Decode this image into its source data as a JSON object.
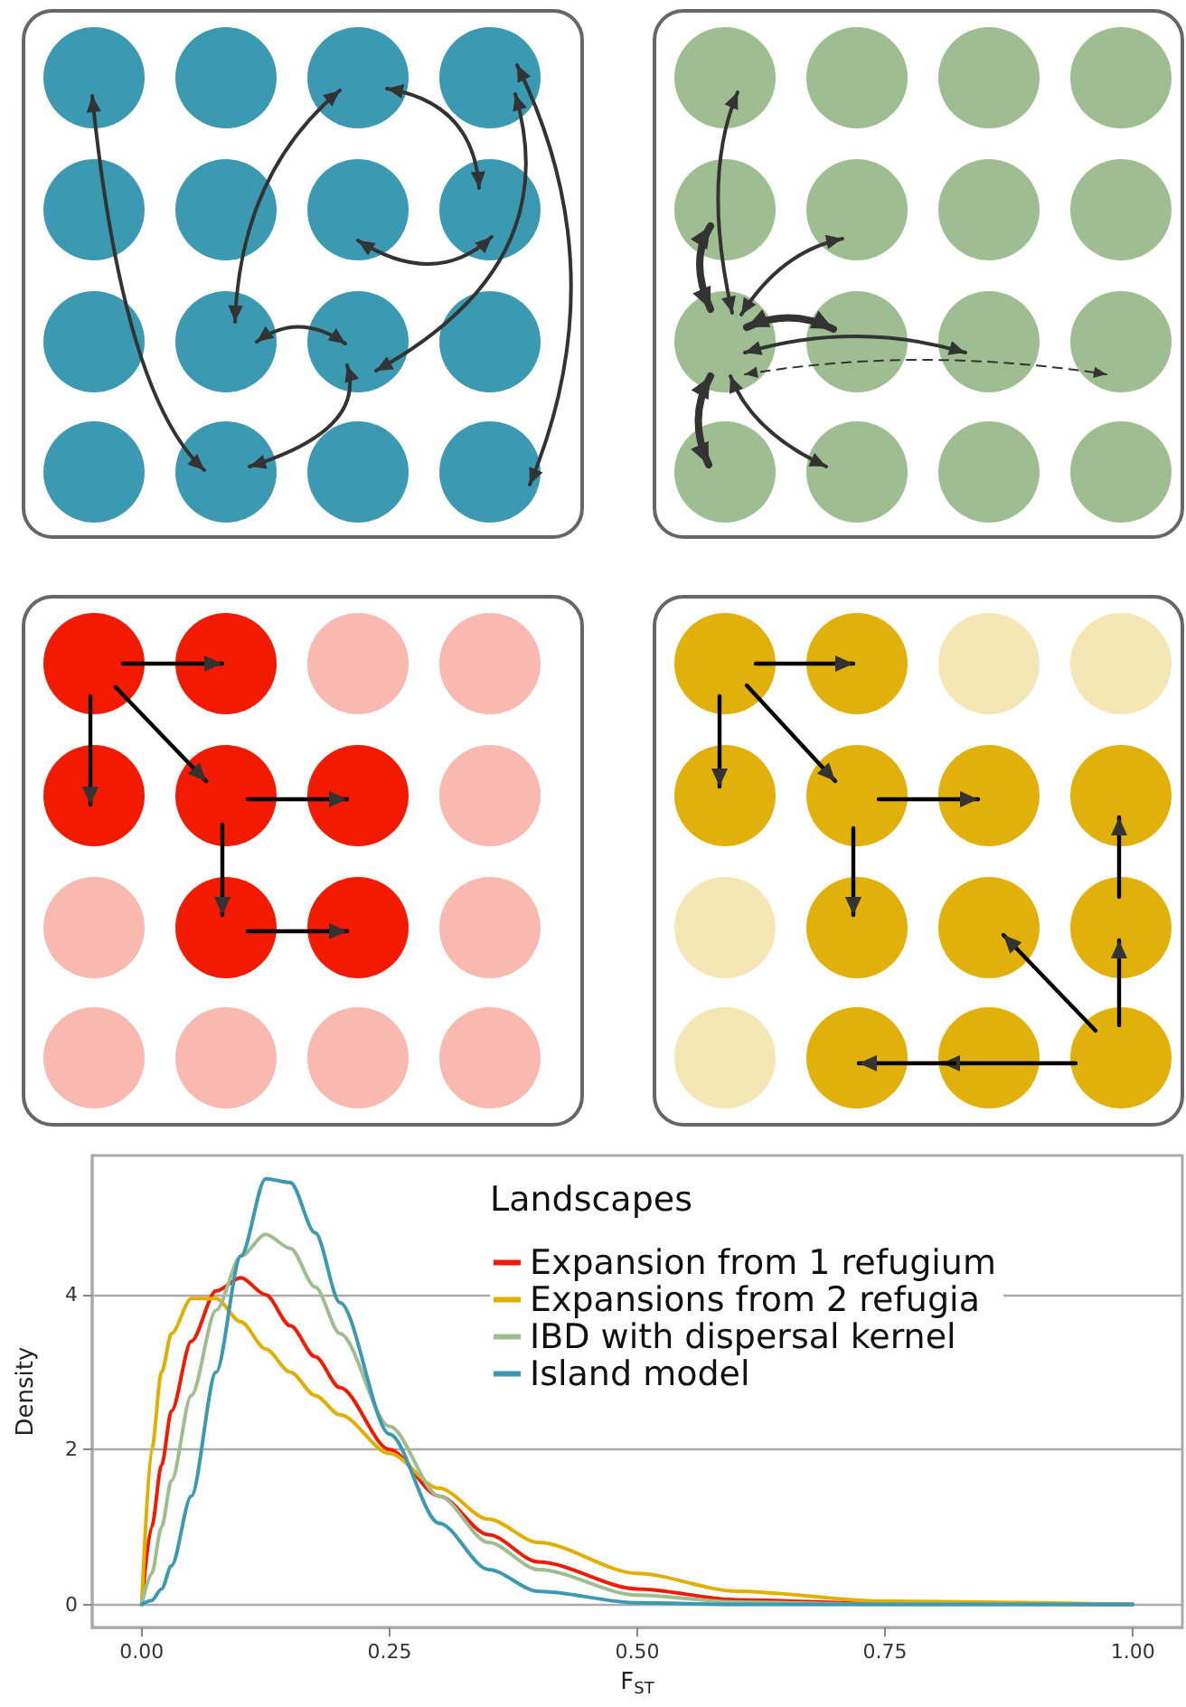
{
  "chart_data": {
    "type": "line",
    "xlabel": "F$_{ST}$",
    "ylabel": "Density",
    "legend_title": "Landscapes",
    "x": [
      0,
      0.01,
      0.02,
      0.03,
      0.05,
      0.075,
      0.1,
      0.125,
      0.15,
      0.175,
      0.2,
      0.25,
      0.3,
      0.35,
      0.4,
      0.5,
      0.6,
      0.75,
      1
    ],
    "series": [
      {
        "name": "Expansion from 1 refugium",
        "color": "#f21a00",
        "values": [
          0,
          1.0,
          1.8,
          2.5,
          3.4,
          4.05,
          4.22,
          4.0,
          3.6,
          3.2,
          2.8,
          2.0,
          1.4,
          0.9,
          0.55,
          0.2,
          0.06,
          0.01,
          0
        ]
      },
      {
        "name": "Expansions from 2 refugia",
        "color": "#e1af00",
        "values": [
          0,
          2.0,
          3.0,
          3.5,
          3.95,
          3.95,
          3.65,
          3.3,
          3.0,
          2.7,
          2.45,
          1.95,
          1.5,
          1.1,
          0.8,
          0.4,
          0.17,
          0.04,
          0
        ]
      },
      {
        "name": "IBD with dispersal kernel",
        "color": "#9ebe91",
        "values": [
          0,
          0.4,
          1.0,
          1.6,
          2.7,
          3.8,
          4.5,
          4.78,
          4.6,
          4.1,
          3.5,
          2.3,
          1.4,
          0.8,
          0.45,
          0.12,
          0.03,
          0,
          0
        ]
      },
      {
        "name": "Island model",
        "color": "#3b9ab2",
        "values": [
          0,
          0.05,
          0.2,
          0.5,
          1.4,
          3.0,
          4.5,
          5.5,
          5.45,
          4.8,
          3.9,
          2.2,
          1.05,
          0.45,
          0.17,
          0.02,
          0,
          0,
          0
        ]
      }
    ],
    "xlim": [
      -0.05,
      1.05
    ],
    "xticks": [
      {
        "value": 0,
        "label": "0.00"
      },
      {
        "value": 0.25,
        "label": "0.25"
      },
      {
        "value": 0.5,
        "label": "0.50"
      },
      {
        "value": 0.75,
        "label": "0.75"
      },
      {
        "value": 1,
        "label": "1.00"
      }
    ],
    "ylim": [
      -0.3,
      5.8
    ],
    "yticks": [
      0,
      2,
      4
    ],
    "grid": "y",
    "legend": "top right",
    "marker": "none",
    "line_style": "solid"
  }
}
